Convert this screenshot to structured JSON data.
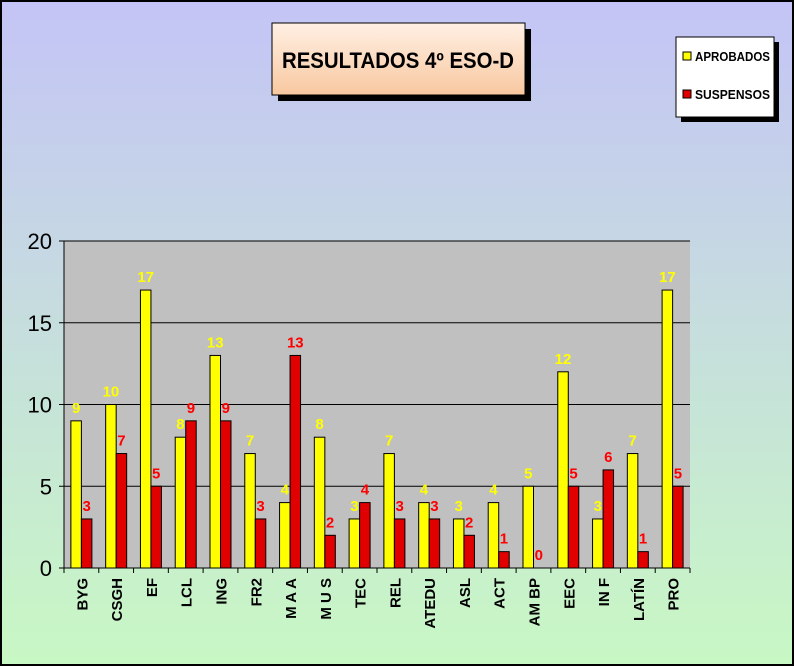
{
  "chart_data": {
    "type": "bar",
    "title": "RESULTADOS 4º ESO-D",
    "categories": [
      "BYG",
      "CSGH",
      "EF",
      "LCL",
      "ING",
      "FR2",
      "M A A",
      "M U S",
      "TEC",
      "REL",
      "ATEDU",
      "ASL",
      "ACT",
      "AM BP",
      "EEC",
      "IN F",
      "LATÍN",
      "PRO"
    ],
    "series": [
      {
        "name": "APROBADOS",
        "color": "#ffff00",
        "label_color": "#ffff00",
        "values": [
          9,
          10,
          17,
          8,
          13,
          7,
          4,
          8,
          3,
          7,
          4,
          3,
          4,
          5,
          12,
          3,
          7,
          17
        ]
      },
      {
        "name": "SUSPENSOS",
        "color": "#e00000",
        "label_color": "#ff0000",
        "values": [
          3,
          7,
          5,
          9,
          9,
          3,
          13,
          2,
          4,
          3,
          3,
          2,
          1,
          0,
          5,
          6,
          1,
          5
        ]
      }
    ],
    "ylim": [
      0,
      20
    ],
    "yticks": [
      0,
      5,
      10,
      15,
      20
    ],
    "grid": true,
    "legend": "top-right"
  }
}
